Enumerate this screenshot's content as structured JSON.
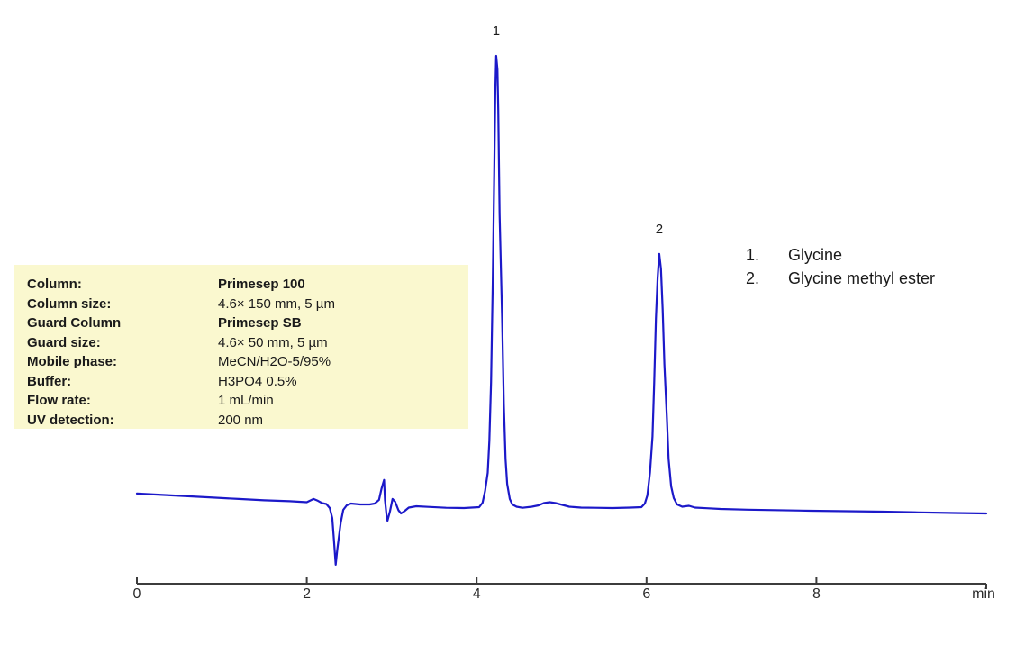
{
  "chart_data": {
    "type": "line",
    "xlabel": "min",
    "x_ticks": [
      0,
      2,
      4,
      6,
      8
    ],
    "x_range": [
      0,
      10
    ],
    "grid": false,
    "legend_position": "right",
    "trace_color": "#1c19c9",
    "axis_color": "#3c3c3c",
    "peaks": [
      {
        "number": "1.",
        "label": "1",
        "name": "Glycine",
        "retention_time_min": 4.23,
        "height_units": 100
      },
      {
        "number": "2.",
        "label": "2",
        "name": "Glycine methyl ester",
        "retention_time_min": 6.15,
        "height_units": 56.3
      }
    ],
    "trace": [
      [
        0,
        3.4
      ],
      [
        0.3,
        3.1
      ],
      [
        0.6,
        2.8
      ],
      [
        0.9,
        2.5
      ],
      [
        1.2,
        2.2
      ],
      [
        1.5,
        1.9
      ],
      [
        1.8,
        1.7
      ],
      [
        2.0,
        1.5
      ],
      [
        2.08,
        2.2
      ],
      [
        2.13,
        1.8
      ],
      [
        2.18,
        1.3
      ],
      [
        2.23,
        1.1
      ],
      [
        2.27,
        0.2
      ],
      [
        2.3,
        -2.0
      ],
      [
        2.32,
        -7.0
      ],
      [
        2.34,
        -12.3
      ],
      [
        2.36,
        -8.9
      ],
      [
        2.4,
        -3.0
      ],
      [
        2.43,
        -0.2
      ],
      [
        2.47,
        0.8
      ],
      [
        2.52,
        1.2
      ],
      [
        2.63,
        1.0
      ],
      [
        2.74,
        1.0
      ],
      [
        2.8,
        1.2
      ],
      [
        2.85,
        2.0
      ],
      [
        2.88,
        4.5
      ],
      [
        2.91,
        6.4
      ],
      [
        2.92,
        2.0
      ],
      [
        2.94,
        -1.5
      ],
      [
        2.95,
        -2.6
      ],
      [
        2.98,
        -0.5
      ],
      [
        3.01,
        2.2
      ],
      [
        3.04,
        1.6
      ],
      [
        3.08,
        -0.3
      ],
      [
        3.11,
        -1.0
      ],
      [
        3.15,
        -0.5
      ],
      [
        3.2,
        0.3
      ],
      [
        3.29,
        0.6
      ],
      [
        3.43,
        0.45
      ],
      [
        3.64,
        0.25
      ],
      [
        3.85,
        0.2
      ],
      [
        4.03,
        0.4
      ],
      [
        4.07,
        1.4
      ],
      [
        4.1,
        4
      ],
      [
        4.13,
        8
      ],
      [
        4.15,
        15
      ],
      [
        4.17,
        28
      ],
      [
        4.19,
        50
      ],
      [
        4.21,
        78
      ],
      [
        4.22,
        92
      ],
      [
        4.23,
        100
      ],
      [
        4.245,
        97
      ],
      [
        4.255,
        88
      ],
      [
        4.27,
        65
      ],
      [
        4.3,
        42
      ],
      [
        4.32,
        23
      ],
      [
        4.34,
        11
      ],
      [
        4.36,
        5.5
      ],
      [
        4.39,
        2.2
      ],
      [
        4.42,
        1.0
      ],
      [
        4.47,
        0.5
      ],
      [
        4.54,
        0.25
      ],
      [
        4.65,
        0.5
      ],
      [
        4.73,
        0.8
      ],
      [
        4.79,
        1.3
      ],
      [
        4.86,
        1.5
      ],
      [
        4.93,
        1.3
      ],
      [
        5.01,
        0.9
      ],
      [
        5.09,
        0.5
      ],
      [
        5.23,
        0.3
      ],
      [
        5.39,
        0.25
      ],
      [
        5.6,
        0.2
      ],
      [
        5.81,
        0.3
      ],
      [
        5.94,
        0.4
      ],
      [
        5.98,
        1.2
      ],
      [
        6.01,
        3
      ],
      [
        6.04,
        8
      ],
      [
        6.07,
        16
      ],
      [
        6.09,
        28
      ],
      [
        6.11,
        42
      ],
      [
        6.13,
        51
      ],
      [
        6.15,
        56.3
      ],
      [
        6.17,
        53
      ],
      [
        6.19,
        44
      ],
      [
        6.21,
        32
      ],
      [
        6.24,
        20
      ],
      [
        6.26,
        11
      ],
      [
        6.29,
        5
      ],
      [
        6.32,
        2.4
      ],
      [
        6.36,
        1.0
      ],
      [
        6.42,
        0.5
      ],
      [
        6.5,
        0.7
      ],
      [
        6.57,
        0.3
      ],
      [
        6.71,
        0.15
      ],
      [
        6.87,
        0.0
      ],
      [
        7.19,
        -0.15
      ],
      [
        7.51,
        -0.25
      ],
      [
        7.93,
        -0.4
      ],
      [
        8.36,
        -0.5
      ],
      [
        8.78,
        -0.6
      ],
      [
        9.2,
        -0.75
      ],
      [
        9.63,
        -0.9
      ],
      [
        10.0,
        -1.0
      ]
    ]
  },
  "conditions": {
    "background_color": "#faf8cf",
    "rows": [
      {
        "label": "Column:",
        "value": "Primesep 100",
        "value_bold": true
      },
      {
        "label": "Column size:",
        "value": "4.6× 150 mm, 5 µm",
        "value_bold": false
      },
      {
        "label": "Guard Column",
        "value": "Primesep SB",
        "value_bold": true
      },
      {
        "label": "Guard size:",
        "value": "4.6× 50 mm, 5 µm",
        "value_bold": false
      },
      {
        "label": "Mobile phase:",
        "value": "MeCN/H2O-5/95%",
        "value_bold": false
      },
      {
        "label": "Buffer:",
        "value": "H3PO4 0.5%",
        "value_bold": false
      },
      {
        "label": "Flow rate:",
        "value": "1 mL/min",
        "value_bold": false
      },
      {
        "label": "UV detection:",
        "value": "200 nm",
        "value_bold": false
      }
    ]
  }
}
